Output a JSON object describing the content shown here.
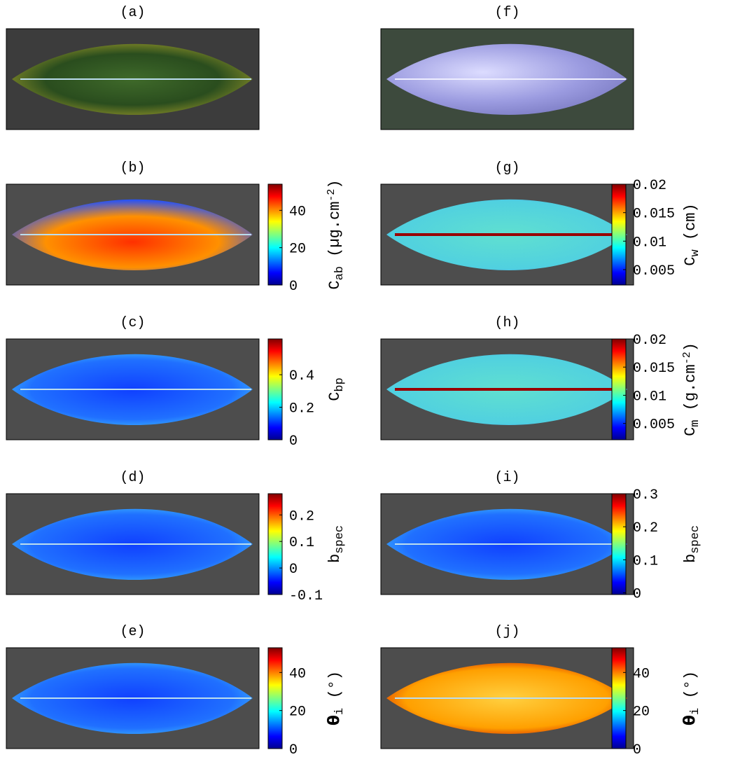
{
  "panels": [
    {
      "label": "(a)"
    },
    {
      "label": "(b)",
      "colorbar": {
        "lim": [
          0,
          54
        ],
        "ticks": [
          0,
          20,
          40
        ],
        "label": [
          "C",
          "ab",
          " (µg.cm",
          "-2",
          ")"
        ],
        "label_style": [
          "normal",
          "sub",
          "normal",
          "super",
          "normal"
        ]
      }
    },
    {
      "label": "(c)",
      "colorbar": {
        "lim": [
          0,
          0.62
        ],
        "ticks": [
          0,
          0.2,
          0.4
        ],
        "label": [
          "C",
          "bp"
        ],
        "label_style": [
          "normal",
          "sub"
        ]
      }
    },
    {
      "label": "(d)",
      "colorbar": {
        "lim": [
          -0.1,
          0.28
        ],
        "ticks": [
          -0.1,
          0,
          0.1,
          0.2
        ],
        "label": [
          "b",
          "spec"
        ],
        "label_style": [
          "normal",
          "sub"
        ]
      }
    },
    {
      "label": "(e)",
      "colorbar": {
        "lim": [
          0,
          53
        ],
        "ticks": [
          0,
          20,
          40
        ],
        "label": [
          "θ",
          "i",
          " (°)"
        ],
        "label_style": [
          "bold",
          "sub",
          "normal"
        ]
      }
    },
    {
      "label": "(f)"
    },
    {
      "label": "(g)",
      "colorbar": {
        "lim": [
          0.0023,
          0.02
        ],
        "ticks": [
          0.005,
          0.01,
          0.015,
          0.02
        ],
        "label": [
          "C",
          "w",
          " (cm)"
        ],
        "label_style": [
          "normal",
          "sub",
          "normal"
        ]
      }
    },
    {
      "label": "(h)",
      "colorbar": {
        "lim": [
          0.0021,
          0.02
        ],
        "ticks": [
          0.005,
          0.01,
          0.015,
          0.02
        ],
        "label": [
          "C",
          "m",
          " (g.cm",
          "-2",
          ")"
        ],
        "label_style": [
          "normal",
          "sub",
          "normal",
          "super",
          "normal"
        ]
      }
    },
    {
      "label": "(i)",
      "colorbar": {
        "lim": [
          -0.005,
          0.3
        ],
        "ticks": [
          0,
          0.1,
          0.2,
          0.3
        ],
        "label": [
          "b",
          "spec"
        ],
        "label_style": [
          "normal",
          "sub"
        ]
      }
    },
    {
      "label": "(j)",
      "colorbar": {
        "lim": [
          0,
          53
        ],
        "ticks": [
          0,
          20,
          40
        ],
        "label": [
          "θ",
          "i",
          " (°)"
        ],
        "label_style": [
          "bold",
          "sub",
          "normal"
        ]
      }
    }
  ]
}
